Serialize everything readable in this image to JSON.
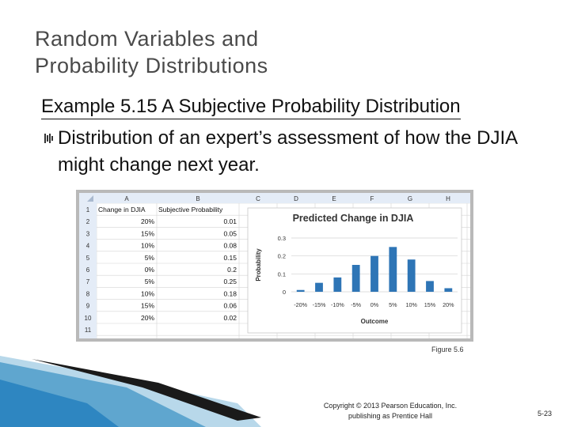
{
  "slide": {
    "title_line1": "Random Variables and",
    "title_line2": "Probability Distributions",
    "subhead": "Example 5.15 A Subjective Probability Distribution",
    "bullet": "Distribution of an expert’s assessment of how the DJIA might change next year.",
    "figure_caption": "Figure 5.6",
    "copyright_line1": "Copyright © 2013 Pearson Education, Inc.",
    "copyright_line2": "publishing as Prentice Hall",
    "page_number": "5-23"
  },
  "spreadsheet": {
    "columns": [
      "A",
      "B",
      "C",
      "D",
      "E",
      "F",
      "G",
      "H"
    ],
    "rows": [
      "1",
      "2",
      "3",
      "4",
      "5",
      "6",
      "7",
      "8",
      "9",
      "10",
      "11"
    ],
    "header_a": "Change in DJIA",
    "header_b": "Subjective Probability",
    "col_a": [
      "20%",
      "15%",
      "10%",
      "5%",
      "0%",
      "5%",
      "10%",
      "15%",
      "20%"
    ],
    "col_b": [
      "0.01",
      "0.05",
      "0.08",
      "0.15",
      "0.2",
      "0.25",
      "0.18",
      "0.06",
      "0.02"
    ]
  },
  "chart_data": {
    "type": "bar",
    "title": "Predicted Change in DJIA",
    "xlabel": "Outcome",
    "ylabel": "Probability",
    "categories": [
      "-20%",
      "-15%",
      "-10%",
      "-5%",
      "0%",
      "5%",
      "10%",
      "15%",
      "20%"
    ],
    "values": [
      0.01,
      0.05,
      0.08,
      0.15,
      0.2,
      0.25,
      0.18,
      0.06,
      0.02
    ],
    "yticks": [
      "0",
      "0.1",
      "0.2",
      "0.3"
    ],
    "ylim": [
      0,
      0.3
    ],
    "bar_color": "#2e75b6",
    "grid": true,
    "legend": false
  }
}
